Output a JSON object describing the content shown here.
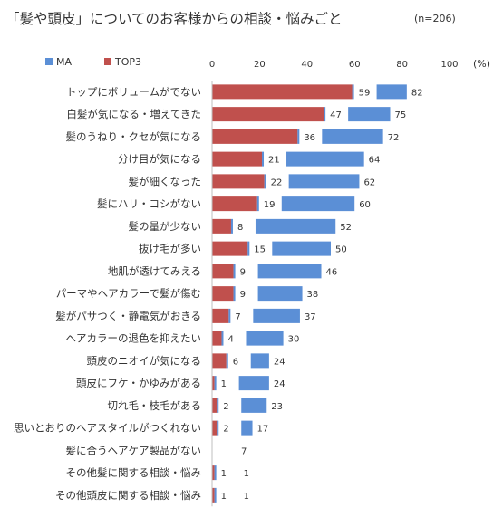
{
  "title": "「髪や頭皮」についてのお客様からの相談・悩みごと",
  "note": "(n=206)",
  "unit_label": "(%)",
  "chart_data": {
    "type": "bar",
    "orientation": "horizontal",
    "xlim": [
      0,
      100
    ],
    "xticks": [
      0,
      20,
      40,
      60,
      80,
      100
    ],
    "legend_position": "top-left",
    "categories": [
      "トップにボリュームがでない",
      "白髪が気になる・増えてきた",
      "髪のうねり・クセが気になる",
      "分け目が気になる",
      "髪が細くなった",
      "髪にハリ・コシがない",
      "髪の量が少ない",
      "抜け毛が多い",
      "地肌が透けてみえる",
      "パーマやヘアカラーで髪が傷む",
      "髪がパサつく・静電気がおきる",
      "ヘアカラーの退色を抑えたい",
      "頭皮のニオイが気になる",
      "頭皮にフケ・かゆみがある",
      "切れ毛・枝毛がある",
      "思いとおりのヘアスタイルがつくれない",
      "髪に合うヘアケア製品がない",
      "その他髪に関する相談・悩み",
      "その他頭皮に関する相談・悩み"
    ],
    "series": [
      {
        "name": "MA",
        "color": "#5b8fd6",
        "values": [
          82,
          75,
          72,
          64,
          62,
          60,
          52,
          50,
          46,
          38,
          37,
          30,
          24,
          24,
          23,
          17,
          7,
          1,
          1
        ]
      },
      {
        "name": "TOP3",
        "color": "#c0504d",
        "values": [
          59,
          47,
          36,
          21,
          22,
          19,
          8,
          15,
          9,
          9,
          7,
          4,
          6,
          1,
          2,
          2,
          0,
          1,
          1
        ]
      }
    ],
    "label_series": "MA",
    "label_series_secondary": "TOP3"
  }
}
